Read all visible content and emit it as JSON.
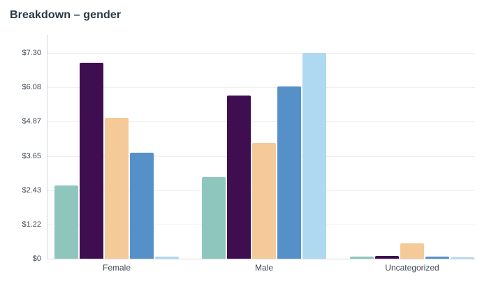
{
  "title": "Breakdown – gender",
  "chart_data": {
    "type": "bar",
    "title": "Breakdown – gender",
    "categories": [
      "Female",
      "Male",
      "Uncategorized"
    ],
    "series": [
      {
        "color": "#8EC6BE",
        "values": [
          2.6,
          2.9,
          0.07
        ]
      },
      {
        "color": "#3F0E51",
        "values": [
          6.95,
          5.8,
          0.1
        ]
      },
      {
        "color": "#F6C998",
        "values": [
          5.0,
          4.1,
          0.55
        ]
      },
      {
        "color": "#5591C8",
        "values": [
          3.75,
          6.1,
          0.08
        ]
      },
      {
        "color": "#AFD8F1",
        "values": [
          0.07,
          7.3,
          0.05
        ]
      }
    ],
    "xlabel": "",
    "ylabel": "",
    "y_ticks": [
      "$7.30",
      "$6.08",
      "$4.87",
      "$3.65",
      "$2.43",
      "$1.22",
      "$0"
    ],
    "y_tick_values": [
      7.3,
      6.08,
      4.87,
      3.65,
      2.43,
      1.22,
      0
    ],
    "ylim": [
      0,
      7.3
    ],
    "grid": "horizontal",
    "legend_position": "none"
  },
  "colors": {
    "background": "#ffffff",
    "title_text": "#273945",
    "tick_text": "#3e4954",
    "category_text": "#434a54",
    "gridline": "#efefef",
    "axis_line": "#d8d8d8"
  }
}
